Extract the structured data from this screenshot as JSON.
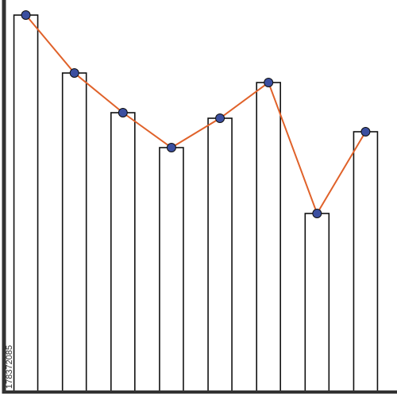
{
  "chart_data": {
    "type": "bar-line",
    "values": [
      474,
      401,
      351,
      307,
      344,
      389,
      224,
      327
    ],
    "ylim": [
      0,
      480
    ],
    "bar_color": "#ffffff",
    "line_color": "#e0622a",
    "marker_color": "#3b4fa0",
    "watermark": "178372085"
  }
}
